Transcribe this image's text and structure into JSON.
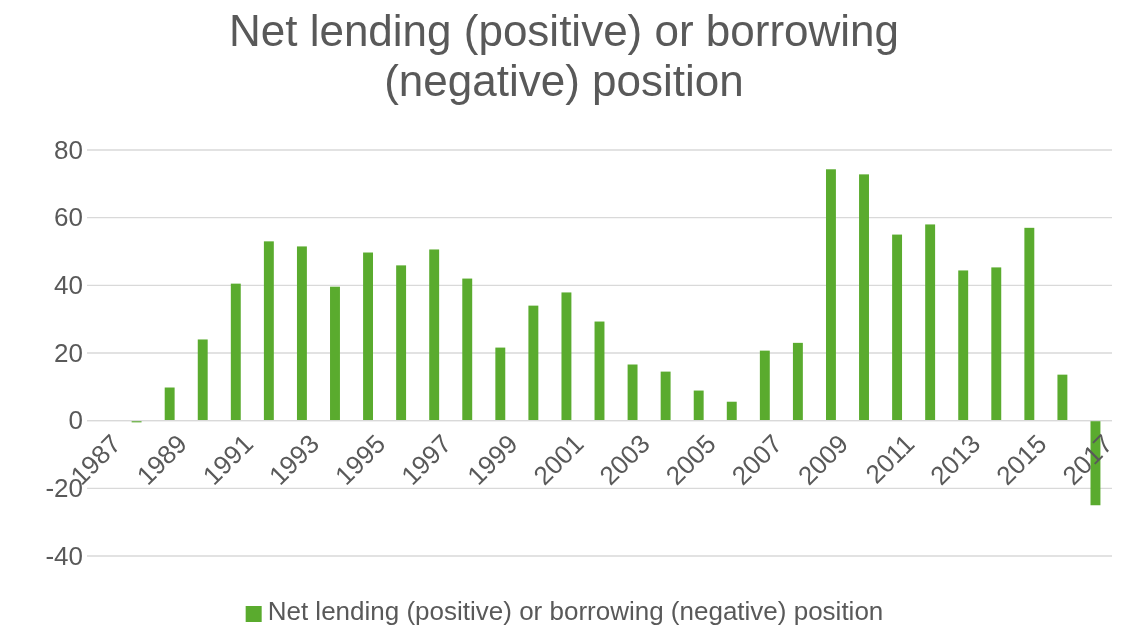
{
  "chart_data": {
    "type": "bar",
    "title": "Net lending (positive) or borrowing (negative) position",
    "categories": [
      "1987",
      null,
      "1989",
      null,
      "1991",
      null,
      "1993",
      null,
      "1995",
      null,
      "1997",
      null,
      "1999",
      null,
      "2001",
      null,
      "2003",
      null,
      "2005",
      null,
      "2007",
      null,
      "2009",
      null,
      "2011",
      null,
      "2013",
      null,
      "2015",
      null,
      "2017"
    ],
    "series": [
      {
        "name": "Net lending (positive) or borrowing (negative) position",
        "color": "#5aab2e",
        "values": [
          0,
          -0.5,
          9.8,
          24,
          40.5,
          53,
          51.5,
          39.6,
          49.7,
          45.9,
          50.6,
          42,
          21.6,
          34,
          37.9,
          29.3,
          16.6,
          14.5,
          8.9,
          5.6,
          20.7,
          23,
          74.3,
          72.8,
          55,
          58,
          44.4,
          45.3,
          57,
          13.6,
          -25
        ]
      }
    ],
    "ylim": [
      -40,
      80
    ],
    "yticks": [
      -40,
      -20,
      0,
      20,
      40,
      60,
      80
    ],
    "grid": "y",
    "legend": "bottom"
  }
}
